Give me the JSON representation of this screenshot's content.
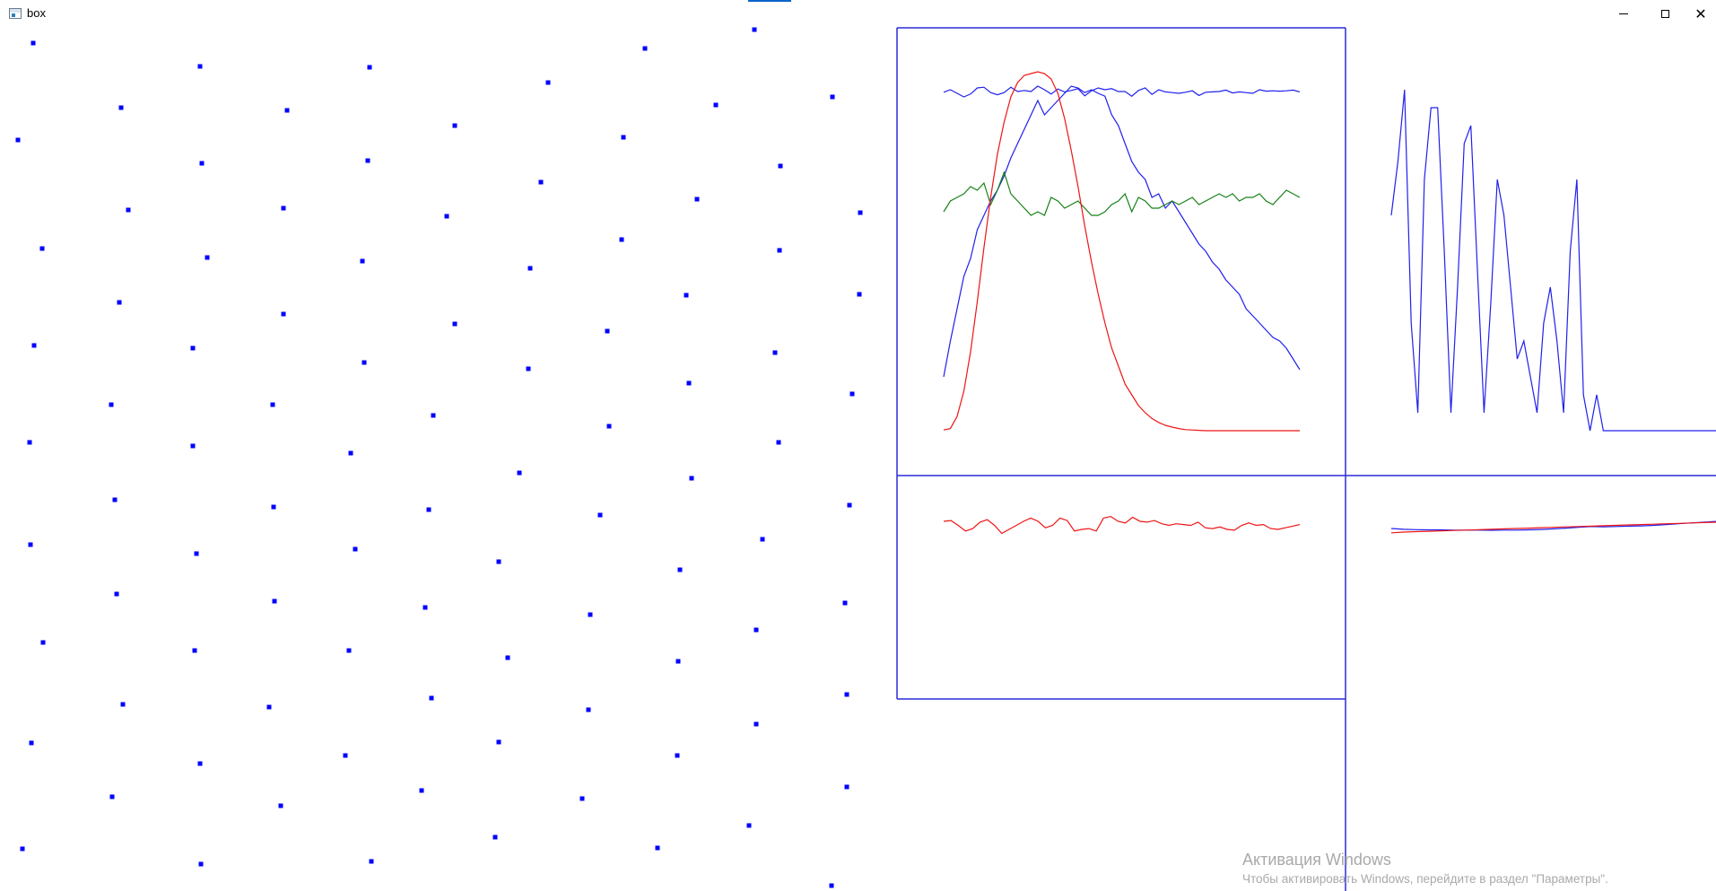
{
  "window": {
    "title": "box",
    "controls": {
      "minimize_icon": "minimize-icon",
      "maximize_icon": "maximize-icon",
      "close_icon": "close-icon",
      "close_glyph": "✕"
    }
  },
  "colors": {
    "points": "#0000ff",
    "frame": "#2b2bd8",
    "series_blue": "#2020ee",
    "series_red": "#ee1515",
    "series_green": "#168016",
    "watermark": "#a9a9a9"
  },
  "scatter_points": [
    [
      37,
      48
    ],
    [
      223,
      74
    ],
    [
      412,
      75
    ],
    [
      611,
      92
    ],
    [
      719,
      54
    ],
    [
      841,
      33
    ],
    [
      20,
      156
    ],
    [
      135,
      120
    ],
    [
      320,
      123
    ],
    [
      507,
      140
    ],
    [
      695,
      153
    ],
    [
      798,
      117
    ],
    [
      928,
      108
    ],
    [
      225,
      182
    ],
    [
      410,
      179
    ],
    [
      603,
      203
    ],
    [
      870,
      185
    ],
    [
      143,
      234
    ],
    [
      316,
      232
    ],
    [
      498,
      241
    ],
    [
      777,
      222
    ],
    [
      959,
      237
    ],
    [
      47,
      277
    ],
    [
      231,
      287
    ],
    [
      404,
      291
    ],
    [
      591,
      299
    ],
    [
      693,
      267
    ],
    [
      869,
      279
    ],
    [
      133,
      337
    ],
    [
      316,
      350
    ],
    [
      507,
      361
    ],
    [
      765,
      329
    ],
    [
      958,
      328
    ],
    [
      38,
      385
    ],
    [
      215,
      388
    ],
    [
      406,
      404
    ],
    [
      589,
      411
    ],
    [
      677,
      369
    ],
    [
      864,
      393
    ],
    [
      124,
      451
    ],
    [
      304,
      451
    ],
    [
      483,
      463
    ],
    [
      768,
      427
    ],
    [
      950,
      439
    ],
    [
      33,
      493
    ],
    [
      215,
      497
    ],
    [
      391,
      505
    ],
    [
      579,
      527
    ],
    [
      679,
      475
    ],
    [
      868,
      493
    ],
    [
      128,
      557
    ],
    [
      305,
      565
    ],
    [
      478,
      568
    ],
    [
      669,
      574
    ],
    [
      771,
      533
    ],
    [
      947,
      563
    ],
    [
      34,
      607
    ],
    [
      219,
      617
    ],
    [
      396,
      612
    ],
    [
      556,
      626
    ],
    [
      758,
      635
    ],
    [
      850,
      601
    ],
    [
      130,
      662
    ],
    [
      306,
      670
    ],
    [
      474,
      677
    ],
    [
      658,
      685
    ],
    [
      942,
      672
    ],
    [
      48,
      716
    ],
    [
      217,
      725
    ],
    [
      389,
      725
    ],
    [
      566,
      733
    ],
    [
      756,
      737
    ],
    [
      843,
      702
    ],
    [
      137,
      785
    ],
    [
      300,
      788
    ],
    [
      481,
      778
    ],
    [
      656,
      791
    ],
    [
      944,
      774
    ],
    [
      35,
      828
    ],
    [
      223,
      851
    ],
    [
      385,
      842
    ],
    [
      556,
      827
    ],
    [
      755,
      842
    ],
    [
      843,
      807
    ],
    [
      944,
      877
    ],
    [
      125,
      888
    ],
    [
      313,
      898
    ],
    [
      470,
      881
    ],
    [
      649,
      890
    ],
    [
      835,
      920
    ],
    [
      25,
      946
    ],
    [
      224,
      963
    ],
    [
      414,
      960
    ],
    [
      552,
      933
    ],
    [
      733,
      945
    ],
    [
      927,
      987
    ]
  ],
  "panels": {
    "frame_line_width": 1.5
  },
  "chart_data": [
    {
      "type": "line",
      "series": [
        {
          "color": "#2020ee",
          "values": [
            0.057,
            0.05,
            0.06,
            0.07,
            0.062,
            0.045,
            0.043,
            0.058,
            0.064,
            0.058,
            0.043,
            0.055,
            0.052,
            0.055,
            0.04,
            0.05,
            0.062,
            0.048,
            0.056,
            0.052,
            0.047,
            0.067,
            0.053,
            0.045,
            0.05,
            0.047,
            0.055,
            0.055,
            0.068,
            0.052,
            0.045,
            0.063,
            0.05,
            0.056,
            0.058,
            0.06,
            0.057,
            0.053,
            0.066,
            0.057,
            0.056,
            0.055,
            0.051,
            0.059,
            0.056,
            0.058,
            0.06,
            0.05,
            0.054,
            0.053,
            0.054,
            0.053,
            0.051,
            0.056
          ]
        },
        {
          "color": "#2020ee",
          "values": [
            0.85,
            0.75,
            0.66,
            0.57,
            0.52,
            0.44,
            0.4,
            0.36,
            0.33,
            0.29,
            0.24,
            0.2,
            0.16,
            0.12,
            0.08,
            0.12,
            0.1,
            0.08,
            0.06,
            0.04,
            0.045,
            0.058,
            0.05,
            0.06,
            0.068,
            0.12,
            0.15,
            0.2,
            0.25,
            0.28,
            0.3,
            0.35,
            0.34,
            0.38,
            0.36,
            0.39,
            0.42,
            0.45,
            0.48,
            0.5,
            0.53,
            0.55,
            0.58,
            0.6,
            0.62,
            0.66,
            0.68,
            0.7,
            0.72,
            0.74,
            0.75,
            0.77,
            0.8,
            0.83
          ]
        },
        {
          "color": "#168016",
          "values": [
            0.39,
            0.36,
            0.35,
            0.34,
            0.32,
            0.33,
            0.31,
            0.37,
            0.33,
            0.28,
            0.34,
            0.36,
            0.38,
            0.4,
            0.39,
            0.4,
            0.35,
            0.36,
            0.38,
            0.37,
            0.36,
            0.38,
            0.4,
            0.4,
            0.39,
            0.37,
            0.36,
            0.34,
            0.39,
            0.35,
            0.36,
            0.38,
            0.38,
            0.37,
            0.36,
            0.37,
            0.36,
            0.35,
            0.37,
            0.36,
            0.35,
            0.34,
            0.35,
            0.34,
            0.36,
            0.35,
            0.35,
            0.34,
            0.36,
            0.37,
            0.35,
            0.33,
            0.34,
            0.35
          ]
        },
        {
          "color": "#ee1515",
          "values": [
            0.998,
            0.994,
            0.96,
            0.89,
            0.78,
            0.64,
            0.49,
            0.35,
            0.23,
            0.14,
            0.07,
            0.03,
            0.01,
            0.005,
            0.0,
            0.005,
            0.02,
            0.06,
            0.13,
            0.22,
            0.32,
            0.43,
            0.53,
            0.62,
            0.7,
            0.77,
            0.82,
            0.87,
            0.9,
            0.93,
            0.95,
            0.966,
            0.977,
            0.985,
            0.99,
            0.994,
            0.997,
            0.998,
            0.999,
            1.0,
            1.0,
            1.0,
            1.0,
            1.0,
            1.0,
            1.0,
            1.0,
            1.0,
            1.0,
            1.0,
            1.0,
            1.0,
            1.0,
            1.0
          ]
        }
      ]
    },
    {
      "type": "line",
      "series": [
        {
          "color": "#2020ee",
          "values": [
            0.4,
            0.25,
            0.05,
            0.7,
            0.95,
            0.3,
            0.1,
            0.1,
            0.5,
            0.95,
            0.6,
            0.2,
            0.15,
            0.55,
            0.95,
            0.65,
            0.3,
            0.4,
            0.6,
            0.8,
            0.75,
            0.85,
            0.95,
            0.7,
            0.6,
            0.75,
            0.95,
            0.5,
            0.3,
            0.9,
            1.0,
            0.9,
            1.0,
            1.0,
            1.0,
            1.0,
            1.0,
            1.0,
            1.0,
            1.0,
            1.0,
            1.0,
            1.0,
            1.0,
            1.0,
            1.0,
            1.0,
            1.0,
            1.0,
            1.0
          ]
        }
      ]
    },
    {
      "type": "line",
      "series": [
        {
          "color": "#ee1515",
          "values": [
            0.2,
            0.18,
            0.3,
            0.44,
            0.38,
            0.22,
            0.16,
            0.3,
            0.5,
            0.4,
            0.3,
            0.2,
            0.12,
            0.2,
            0.36,
            0.3,
            0.12,
            0.18,
            0.44,
            0.4,
            0.38,
            0.44,
            0.12,
            0.08,
            0.2,
            0.24,
            0.1,
            0.2,
            0.22,
            0.18,
            0.26,
            0.3,
            0.26,
            0.28,
            0.3,
            0.22,
            0.36,
            0.38,
            0.34,
            0.4,
            0.42,
            0.3,
            0.24,
            0.3,
            0.28,
            0.38,
            0.4,
            0.36,
            0.32,
            0.28
          ]
        }
      ]
    },
    {
      "type": "line",
      "series": [
        {
          "color": "#2020ee",
          "values": [
            0.5,
            0.54,
            0.56,
            0.57,
            0.57,
            0.58,
            0.58,
            0.58,
            0.59,
            0.58,
            0.58,
            0.57,
            0.55,
            0.52,
            0.48,
            0.44,
            0.4,
            0.42,
            0.4,
            0.38,
            0.37,
            0.34,
            0.3,
            0.26,
            0.22,
            0.18,
            0.14
          ]
        },
        {
          "color": "#ee1515",
          "values": [
            0.72,
            0.68,
            0.66,
            0.64,
            0.62,
            0.6,
            0.58,
            0.56,
            0.54,
            0.52,
            0.5,
            0.48,
            0.46,
            0.44,
            0.42,
            0.4,
            0.38,
            0.36,
            0.34,
            0.32,
            0.3,
            0.28,
            0.26,
            0.24,
            0.22,
            0.2,
            0.18
          ]
        }
      ]
    }
  ],
  "watermark": {
    "title": "Активация Windows",
    "subtitle": "Чтобы активировать Windows, перейдите в раздел \"Параметры\"."
  }
}
